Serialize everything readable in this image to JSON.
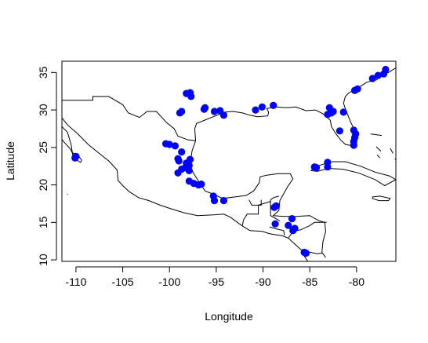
{
  "chart_data": {
    "type": "scatter",
    "xlabel": "Longitude",
    "ylabel": "Latitude",
    "xlim": [
      -111.5,
      -75.8
    ],
    "ylim": [
      9.8,
      36.5
    ],
    "x_ticks": [
      -110,
      -105,
      -100,
      -95,
      -90,
      -85,
      -80
    ],
    "y_ticks": [
      10,
      15,
      20,
      25,
      30,
      35
    ],
    "point_color": "#0000ff",
    "points": [
      {
        "x": -110.1,
        "y": 23.6
      },
      {
        "x": -110.0,
        "y": 23.8
      },
      {
        "x": -100.4,
        "y": 25.5
      },
      {
        "x": -100.0,
        "y": 25.4
      },
      {
        "x": -99.4,
        "y": 25.2
      },
      {
        "x": -98.9,
        "y": 29.6
      },
      {
        "x": -98.7,
        "y": 29.8
      },
      {
        "x": -98.2,
        "y": 32.2
      },
      {
        "x": -97.8,
        "y": 32.3
      },
      {
        "x": -97.7,
        "y": 31.8
      },
      {
        "x": -96.3,
        "y": 30.1
      },
      {
        "x": -96.2,
        "y": 30.3
      },
      {
        "x": -95.2,
        "y": 29.8
      },
      {
        "x": -94.6,
        "y": 29.9
      },
      {
        "x": -94.2,
        "y": 29.3
      },
      {
        "x": -98.7,
        "y": 24.4
      },
      {
        "x": -99.1,
        "y": 23.5
      },
      {
        "x": -99.0,
        "y": 23.2
      },
      {
        "x": -98.2,
        "y": 22.9
      },
      {
        "x": -97.8,
        "y": 23.4
      },
      {
        "x": -97.9,
        "y": 22.6
      },
      {
        "x": -98.7,
        "y": 22.1
      },
      {
        "x": -98.3,
        "y": 22.3
      },
      {
        "x": -97.9,
        "y": 21.9
      },
      {
        "x": -99.1,
        "y": 21.6
      },
      {
        "x": -97.9,
        "y": 20.5
      },
      {
        "x": -97.4,
        "y": 20.2
      },
      {
        "x": -96.9,
        "y": 20.0
      },
      {
        "x": -96.6,
        "y": 20.1
      },
      {
        "x": -95.3,
        "y": 18.5
      },
      {
        "x": -95.2,
        "y": 17.9
      },
      {
        "x": -94.2,
        "y": 17.9
      },
      {
        "x": -90.8,
        "y": 30.0
      },
      {
        "x": -90.1,
        "y": 30.4
      },
      {
        "x": -88.9,
        "y": 30.6
      },
      {
        "x": -88.8,
        "y": 17.0
      },
      {
        "x": -88.6,
        "y": 17.2
      },
      {
        "x": -88.7,
        "y": 14.8
      },
      {
        "x": -87.3,
        "y": 14.6
      },
      {
        "x": -86.8,
        "y": 13.9
      },
      {
        "x": -86.6,
        "y": 14.2
      },
      {
        "x": -86.9,
        "y": 15.5
      },
      {
        "x": -85.6,
        "y": 11.0
      },
      {
        "x": -85.4,
        "y": 10.9
      },
      {
        "x": -84.5,
        "y": 22.4
      },
      {
        "x": -84.3,
        "y": 22.3
      },
      {
        "x": -83.1,
        "y": 23.0
      },
      {
        "x": -83.1,
        "y": 22.4
      },
      {
        "x": -82.9,
        "y": 30.3
      },
      {
        "x": -83.1,
        "y": 29.4
      },
      {
        "x": -82.7,
        "y": 29.6
      },
      {
        "x": -82.5,
        "y": 29.8
      },
      {
        "x": -81.8,
        "y": 27.2
      },
      {
        "x": -81.4,
        "y": 29.7
      },
      {
        "x": -80.3,
        "y": 27.3
      },
      {
        "x": -80.1,
        "y": 26.8
      },
      {
        "x": -80.2,
        "y": 26.3
      },
      {
        "x": -80.3,
        "y": 25.8
      },
      {
        "x": -80.3,
        "y": 25.3
      },
      {
        "x": -80.2,
        "y": 32.6
      },
      {
        "x": -79.9,
        "y": 32.8
      },
      {
        "x": -78.3,
        "y": 34.2
      },
      {
        "x": -77.7,
        "y": 34.6
      },
      {
        "x": -77.1,
        "y": 34.8
      },
      {
        "x": -76.9,
        "y": 35.4
      }
    ]
  }
}
